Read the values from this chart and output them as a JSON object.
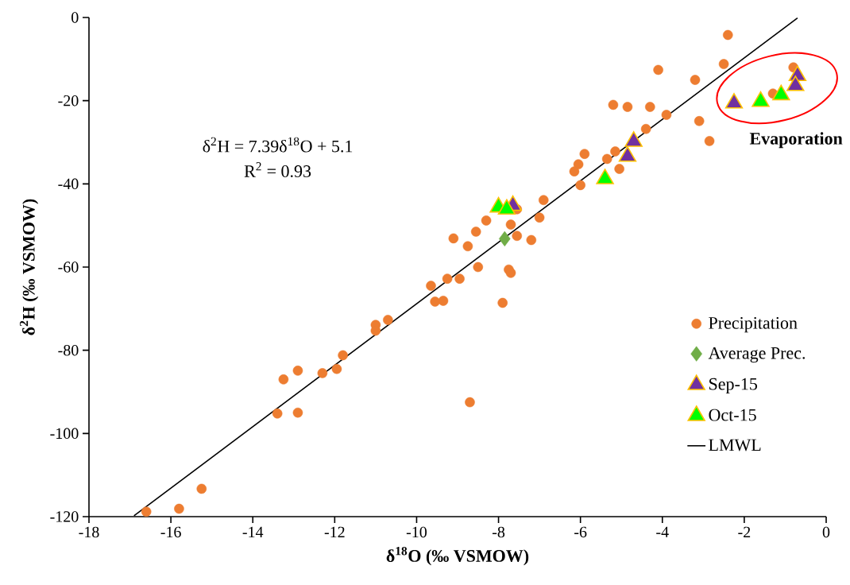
{
  "chart_data": {
    "type": "scatter",
    "xlabel": "δ$^{18}$O (‰ VSMOW)",
    "ylabel": "δ$^{2}$H (‰ VSMOW)",
    "xlim": [
      -18,
      0
    ],
    "ylim": [
      -120,
      0
    ],
    "xticks": [
      -18,
      -16,
      -14,
      -12,
      -10,
      -8,
      -6,
      -4,
      -2,
      0
    ],
    "yticks": [
      -120,
      -100,
      -80,
      -60,
      -40,
      -20,
      0
    ],
    "grid": false,
    "legend": "bottom right",
    "annotations": [
      "δ$^{2}$H = 7.39δ$^{18}$O + 5.1",
      "R$^{2}$ = 0.93",
      {
        "text": "Evaporation",
        "x": -1.2,
        "y": -17
      }
    ],
    "series": [
      {
        "name": "Precipitation",
        "marker": "circle",
        "color": "#ed7d31",
        "x": [
          -2.4,
          -2.5,
          -4.1,
          -3.2,
          -0.8,
          -1.3,
          -5.2,
          -4.85,
          -4.3,
          -3.9,
          -3.1,
          -4.4,
          -2.85,
          -5.9,
          -5.15,
          -5.35,
          -6.05,
          -6.15,
          -5.05,
          -6.0,
          -6.9,
          -7.0,
          -8.3,
          -7.7,
          -7.55,
          -8.55,
          -9.1,
          -8.75,
          -7.55,
          -7.2,
          -8.5,
          -7.75,
          -7.7,
          -9.25,
          -8.95,
          -9.65,
          -9.55,
          -9.35,
          -7.9,
          -10.7,
          -11.0,
          -11.0,
          -11.8,
          -11.95,
          -12.3,
          -12.9,
          -13.25,
          -13.4,
          -12.9,
          -8.7,
          -15.25,
          -15.8,
          -16.6
        ],
        "values": [
          -4.2,
          -11.2,
          -12.6,
          -15.0,
          -12.0,
          -18.3,
          -21.0,
          -21.5,
          -21.5,
          -23.4,
          -24.9,
          -26.8,
          -29.7,
          -32.8,
          -32.2,
          -34.0,
          -35.3,
          -37.0,
          -36.4,
          -40.3,
          -43.9,
          -48.1,
          -48.8,
          -49.8,
          -46.1,
          -51.5,
          -53.1,
          -55.0,
          -52.5,
          -53.5,
          -60.0,
          -60.6,
          -61.4,
          -62.8,
          -62.8,
          -64.5,
          -68.3,
          -68.1,
          -68.6,
          -72.7,
          -73.9,
          -75.3,
          -81.2,
          -84.5,
          -85.5,
          -84.9,
          -87.0,
          -95.2,
          -95.0,
          -92.5,
          -113.3,
          -118.1,
          -118.8
        ]
      },
      {
        "name": "Average Prec.",
        "marker": "diamond",
        "color": "#70ad47",
        "x": [
          -7.85
        ],
        "values": [
          -53.2
        ]
      },
      {
        "name": "Sep-15",
        "marker": "triangle",
        "color": "#7030a0",
        "x": [
          -7.65,
          -4.7,
          -4.85,
          -2.25,
          -0.7,
          -0.75
        ],
        "values": [
          -45.2,
          -29.8,
          -33.4,
          -20.6,
          -14.0,
          -16.4
        ]
      },
      {
        "name": "Oct-15",
        "marker": "triangle",
        "color": "#00ff00",
        "x": [
          -8.0,
          -7.8,
          -5.4,
          -1.6,
          -1.1
        ],
        "values": [
          -45.6,
          -46.1,
          -38.8,
          -20.2,
          -18.6
        ]
      },
      {
        "name": "LMWL",
        "type": "line",
        "marker": "none",
        "line_style": "solid",
        "color": "#000000",
        "x": [
          -16.9,
          -0.7
        ],
        "values": [
          -119.8,
          -0.1
        ]
      }
    ]
  }
}
